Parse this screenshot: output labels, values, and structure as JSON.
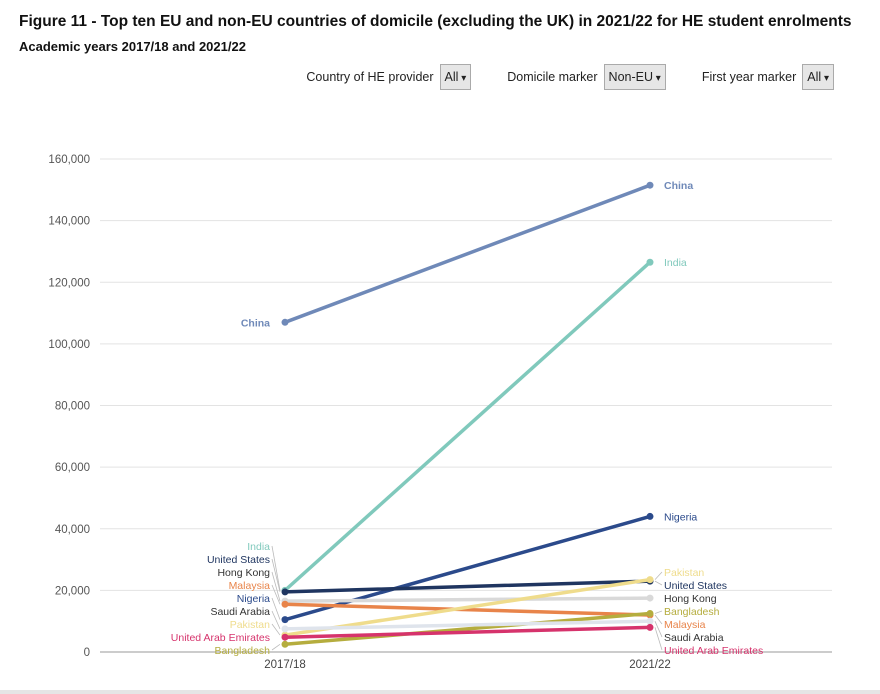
{
  "header": {
    "title": "Figure 11 - Top ten EU and non-EU countries of domicile (excluding the UK) in 2021/22 for HE student enrolments",
    "subtitle": "Academic years 2017/18 and 2021/22"
  },
  "filters": [
    {
      "label": "Country of HE provider",
      "value": "All"
    },
    {
      "label": "Domicile marker",
      "value": "Non-EU"
    },
    {
      "label": "First year marker",
      "value": "All"
    }
  ],
  "chart_data": {
    "type": "line",
    "title": "",
    "categories": [
      "2017/18",
      "2021/22"
    ],
    "ylim": [
      0,
      160000
    ],
    "yticks": [
      0,
      20000,
      40000,
      60000,
      80000,
      100000,
      120000,
      140000,
      160000
    ],
    "ytick_labels": [
      "0",
      "20,000",
      "40,000",
      "60,000",
      "80,000",
      "100,000",
      "120,000",
      "140,000",
      "160,000"
    ],
    "grid": true,
    "legend": "none (direct labels)",
    "series": [
      {
        "name": "China",
        "values": [
          107000,
          151500
        ],
        "color": "#6f89b8"
      },
      {
        "name": "India",
        "values": [
          20000,
          126500
        ],
        "color": "#80c9bc"
      },
      {
        "name": "Nigeria",
        "values": [
          10500,
          44000
        ],
        "color": "#2b4a8b"
      },
      {
        "name": "United States",
        "values": [
          19500,
          23000
        ],
        "color": "#1f3560"
      },
      {
        "name": "Hong Kong",
        "values": [
          16500,
          17500
        ],
        "color": "#d9d9d9"
      },
      {
        "name": "Malaysia",
        "values": [
          15500,
          12000
        ],
        "color": "#e8844a"
      },
      {
        "name": "Pakistan",
        "values": [
          5500,
          23500
        ],
        "color": "#efdc8c"
      },
      {
        "name": "Bangladesh",
        "values": [
          2500,
          12500
        ],
        "color": "#b5ad3e"
      },
      {
        "name": "Saudi Arabia",
        "values": [
          7500,
          10000
        ],
        "color": "#dfe4ec"
      },
      {
        "name": "United Arab Emirates",
        "values": [
          4800,
          8000
        ],
        "color": "#d6336c"
      }
    ]
  }
}
